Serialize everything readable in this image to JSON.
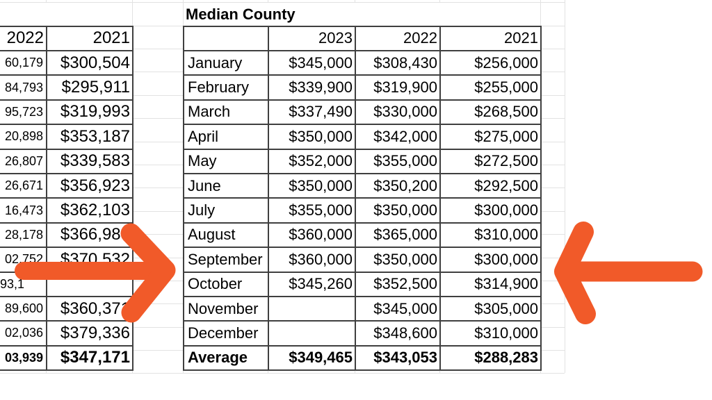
{
  "sheet": {
    "title": "Median County",
    "left_table": {
      "col_headers": [
        "2022",
        "2021"
      ],
      "rows": [
        {
          "v2022": "60,179",
          "v2021": "$300,504"
        },
        {
          "v2022": "84,793",
          "v2021": "$295,911"
        },
        {
          "v2022": "95,723",
          "v2021": "$319,993"
        },
        {
          "v2022": "20,898",
          "v2021": "$353,187"
        },
        {
          "v2022": "26,807",
          "v2021": "$339,583"
        },
        {
          "v2022": "26,671",
          "v2021": "$356,923"
        },
        {
          "v2022": "16,473",
          "v2021": "$362,103"
        },
        {
          "v2022": "28,178",
          "v2021": "$366,983"
        },
        {
          "v2022": "02,752",
          "v2021": "$370,532"
        },
        {
          "v2022": "93,1",
          "v2021": ""
        },
        {
          "v2022": "89,600",
          "v2021": "$360,371"
        },
        {
          "v2022": "02,036",
          "v2021": "$379,336"
        },
        {
          "v2022": "03,939",
          "v2021": "$347,171"
        }
      ]
    },
    "right_table": {
      "col_headers": [
        "2023",
        "2022",
        "2021"
      ],
      "rows": [
        {
          "month": "January",
          "v2023": "$345,000",
          "v2022": "$308,430",
          "v2021": "$256,000"
        },
        {
          "month": "February",
          "v2023": "$339,900",
          "v2022": "$319,900",
          "v2021": "$255,000"
        },
        {
          "month": "March",
          "v2023": "$337,490",
          "v2022": "$330,000",
          "v2021": "$268,500"
        },
        {
          "month": "April",
          "v2023": "$350,000",
          "v2022": "$342,000",
          "v2021": "$275,000"
        },
        {
          "month": "May",
          "v2023": "$352,000",
          "v2022": "$355,000",
          "v2021": "$272,500"
        },
        {
          "month": "June",
          "v2023": "$350,000",
          "v2022": "$350,200",
          "v2021": "$292,500"
        },
        {
          "month": "July",
          "v2023": "$355,000",
          "v2022": "$350,000",
          "v2021": "$300,000"
        },
        {
          "month": "August",
          "v2023": "$360,000",
          "v2022": "$365,000",
          "v2021": "$310,000"
        },
        {
          "month": "September",
          "v2023": "$360,000",
          "v2022": "$350,000",
          "v2021": "$300,000"
        },
        {
          "month": "October",
          "v2023": "$345,260",
          "v2022": "$352,500",
          "v2021": "$314,900"
        },
        {
          "month": "November",
          "v2023": "",
          "v2022": "$345,000",
          "v2021": "$305,000"
        },
        {
          "month": "December",
          "v2023": "",
          "v2022": "$348,600",
          "v2021": "$310,000"
        },
        {
          "month": "Average",
          "v2023": "$349,465",
          "v2022": "$343,053",
          "v2021": "$288,283"
        }
      ]
    }
  },
  "annotations": {
    "arrow_color": "#F15A29",
    "left_arrow_direction": "points-right-at-october-row",
    "right_arrow_direction": "points-left-at-october-row"
  }
}
